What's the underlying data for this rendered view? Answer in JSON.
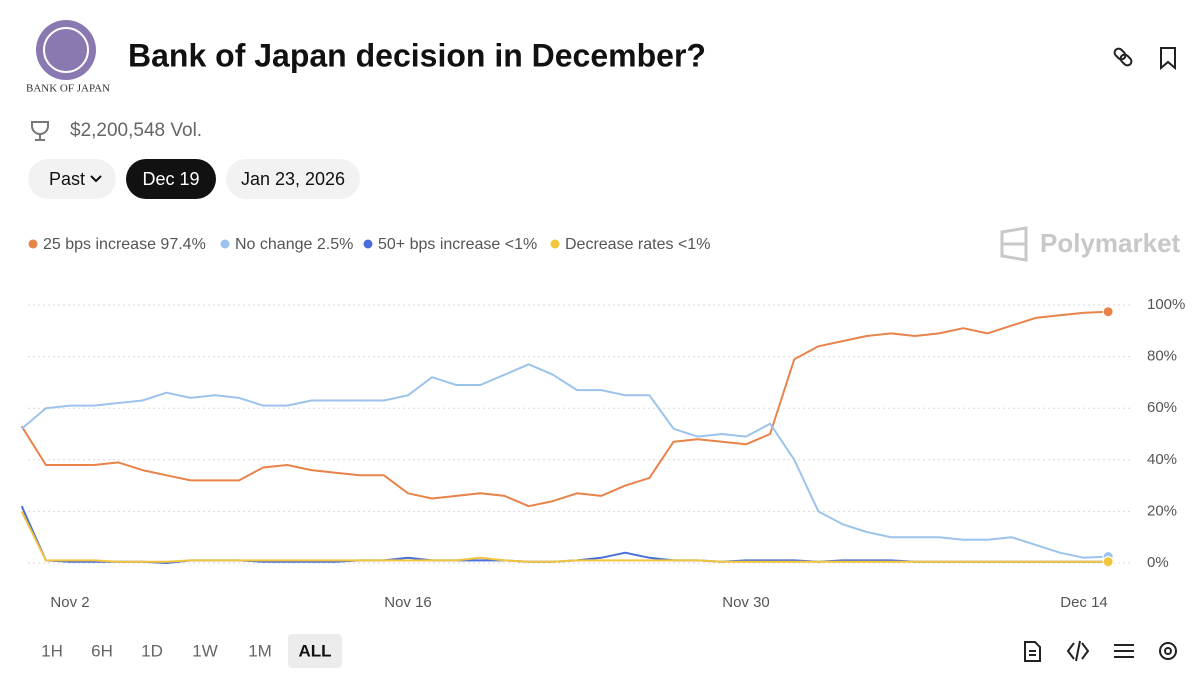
{
  "header": {
    "logo_text": "Bank of Japan",
    "title": "Bank of Japan decision in December?",
    "volume": "$2,200,548 Vol."
  },
  "date_tabs": [
    "Past",
    "Dec 19",
    "Jan 23, 2026"
  ],
  "watermark": "Polymarket",
  "ranges": [
    "1H",
    "6H",
    "1D",
    "1W",
    "1M",
    "ALL"
  ],
  "chart_data": {
    "type": "line",
    "categories": [
      null,
      null,
      "Nov 2",
      null,
      null,
      null,
      null,
      null,
      null,
      null,
      null,
      null,
      null,
      null,
      null,
      null,
      "Nov 16",
      null,
      null,
      null,
      null,
      null,
      null,
      null,
      null,
      null,
      null,
      null,
      null,
      null,
      "Nov 30",
      null,
      null,
      null,
      null,
      null,
      null,
      null,
      null,
      null,
      null,
      null,
      null,
      null,
      "Dec 14",
      null
    ],
    "series": [
      {
        "name": "25 bps increase",
        "legend_value": "97.4%",
        "color": "#e8834a",
        "values": [
          53,
          38,
          38,
          38,
          39,
          36,
          34,
          32,
          32,
          32,
          37,
          38,
          36,
          35,
          34,
          34,
          27,
          25,
          26,
          27,
          26,
          22,
          24,
          27,
          26,
          30,
          33,
          47,
          48,
          47,
          46,
          50,
          79,
          84,
          86,
          88,
          89,
          88,
          89,
          91,
          89,
          92,
          95,
          96,
          97,
          97.4
        ]
      },
      {
        "name": "No change",
        "legend_value": "2.5%",
        "color": "#9cc3ec",
        "values": [
          52,
          60,
          61,
          61,
          62,
          63,
          66,
          64,
          65,
          64,
          61,
          61,
          63,
          63,
          63,
          63,
          65,
          72,
          69,
          69,
          73,
          77,
          73,
          67,
          67,
          65,
          65,
          52,
          49,
          50,
          49,
          54,
          40,
          20,
          15,
          12,
          10,
          10,
          10,
          9,
          9,
          10,
          7,
          4,
          2,
          2.5
        ]
      },
      {
        "name": "50+ bps increase",
        "legend_value": "<1%",
        "color": "#4a6fd9",
        "values": [
          22,
          1,
          0.5,
          0.5,
          0.5,
          0.5,
          0,
          1,
          1,
          1,
          0.5,
          0.5,
          0.5,
          0.5,
          1,
          1,
          2,
          1,
          1,
          1,
          1,
          0.5,
          0.5,
          1,
          2,
          4,
          2,
          1,
          1,
          0.5,
          1,
          1,
          1,
          0.5,
          1,
          1,
          1,
          0.5,
          0.5,
          0.5,
          0.5,
          0.5,
          0.5,
          0.5,
          0.5,
          0.5
        ]
      },
      {
        "name": "Decrease rates",
        "legend_value": "<1%",
        "color": "#f2c53d",
        "values": [
          20,
          1,
          1,
          1,
          0.5,
          0.5,
          0.5,
          1,
          1,
          1,
          1,
          1,
          1,
          1,
          1,
          1,
          1,
          1,
          1,
          2,
          1,
          0.5,
          0.5,
          1,
          1,
          1,
          1,
          1,
          1,
          0.5,
          0.5,
          0.5,
          0.5,
          0.5,
          0.5,
          0.5,
          0.5,
          0.5,
          0.5,
          0.5,
          0.5,
          0.5,
          0.5,
          0.5,
          0.5,
          0.5
        ]
      }
    ],
    "ylim": [
      0,
      100
    ],
    "yticks": [
      {
        "value": 0,
        "label": "0%"
      },
      {
        "value": 20,
        "label": "20%"
      },
      {
        "value": 40,
        "label": "40%"
      },
      {
        "value": 60,
        "label": "60%"
      },
      {
        "value": 80,
        "label": "80%"
      },
      {
        "value": 100,
        "label": "100%"
      }
    ],
    "grid": true
  }
}
